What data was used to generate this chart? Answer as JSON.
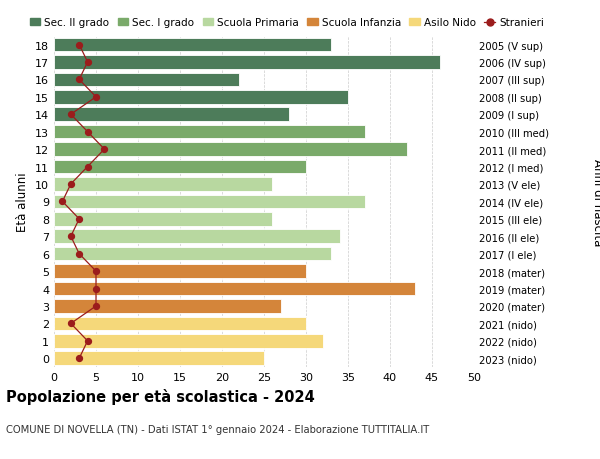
{
  "ages": [
    18,
    17,
    16,
    15,
    14,
    13,
    12,
    11,
    10,
    9,
    8,
    7,
    6,
    5,
    4,
    3,
    2,
    1,
    0
  ],
  "right_labels": [
    "2005 (V sup)",
    "2006 (IV sup)",
    "2007 (III sup)",
    "2008 (II sup)",
    "2009 (I sup)",
    "2010 (III med)",
    "2011 (II med)",
    "2012 (I med)",
    "2013 (V ele)",
    "2014 (IV ele)",
    "2015 (III ele)",
    "2016 (II ele)",
    "2017 (I ele)",
    "2018 (mater)",
    "2019 (mater)",
    "2020 (mater)",
    "2021 (nido)",
    "2022 (nido)",
    "2023 (nido)"
  ],
  "bar_values": [
    33,
    46,
    22,
    35,
    28,
    37,
    42,
    30,
    26,
    37,
    26,
    34,
    33,
    30,
    43,
    27,
    30,
    32,
    25
  ],
  "stranieri_values": [
    3,
    4,
    3,
    5,
    2,
    4,
    6,
    4,
    2,
    1,
    3,
    2,
    3,
    5,
    5,
    5,
    2,
    4,
    3
  ],
  "bar_colors": [
    "#4d7c5a",
    "#4d7c5a",
    "#4d7c5a",
    "#4d7c5a",
    "#4d7c5a",
    "#7aaa6a",
    "#7aaa6a",
    "#7aaa6a",
    "#b8d8a0",
    "#b8d8a0",
    "#b8d8a0",
    "#b8d8a0",
    "#b8d8a0",
    "#d4853a",
    "#d4853a",
    "#d4853a",
    "#f5d87a",
    "#f5d87a",
    "#f5d87a"
  ],
  "legend_labels": [
    "Sec. II grado",
    "Sec. I grado",
    "Scuola Primaria",
    "Scuola Infanzia",
    "Asilo Nido",
    "Stranieri"
  ],
  "legend_colors": [
    "#4d7c5a",
    "#7aaa6a",
    "#b8d8a0",
    "#d4853a",
    "#f5d87a",
    "#9b1c1c"
  ],
  "ylabel_left": "Età alunni",
  "ylabel_right": "Anni di nascita",
  "title_bold": "Popolazione per età scolastica - 2024",
  "subtitle": "COMUNE DI NOVELLA (TN) - Dati ISTAT 1° gennaio 2024 - Elaborazione TUTTITALIA.IT",
  "xlim": [
    0,
    50
  ],
  "xticks": [
    0,
    5,
    10,
    15,
    20,
    25,
    30,
    35,
    40,
    45,
    50
  ],
  "stranieri_color": "#9b1c1c",
  "bg_color": "#ffffff",
  "grid_color": "#cccccc"
}
